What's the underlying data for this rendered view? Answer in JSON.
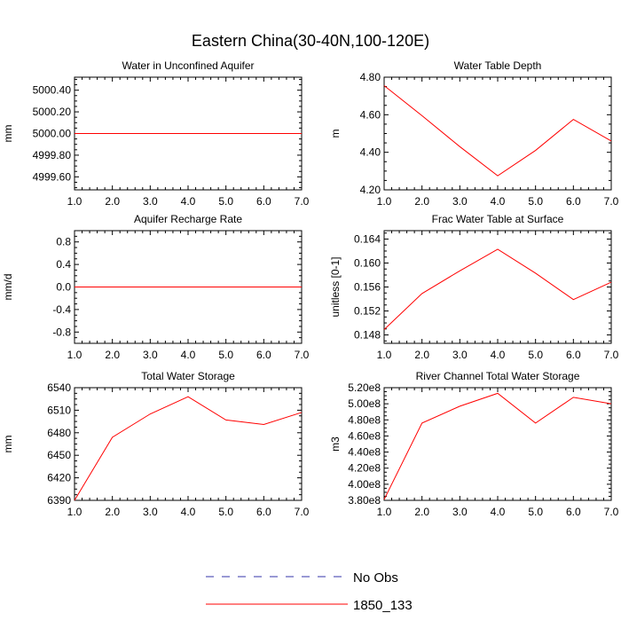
{
  "figure": {
    "title": "Eastern China(30-40N,100-120E)"
  },
  "legend": {
    "entries": [
      {
        "label": "No Obs",
        "color": "#3333aa",
        "style": "dashed"
      },
      {
        "label": "1850_133",
        "color": "#ff0000",
        "style": "solid"
      }
    ]
  },
  "chart_data": [
    {
      "type": "line",
      "title": "Water in Unconfined Aquifer",
      "ylabel": "mm",
      "x": [
        1,
        2,
        3,
        4,
        5,
        6,
        7
      ],
      "xticks": [
        "1.0",
        "2.0",
        "3.0",
        "4.0",
        "5.0",
        "6.0",
        "7.0"
      ],
      "ylim": [
        4999.48,
        5000.52
      ],
      "yticks": [
        4999.6,
        4999.8,
        5000.0,
        5000.2,
        5000.4
      ],
      "ytick_labels": [
        "4999.60",
        "4999.80",
        "5000.00",
        "5000.20",
        "5000.40"
      ],
      "series": [
        {
          "name": "1850_133",
          "color": "#ff0000",
          "values": [
            5000,
            5000,
            5000,
            5000,
            5000,
            5000,
            5000
          ]
        }
      ]
    },
    {
      "type": "line",
      "title": "Water Table Depth",
      "ylabel": "m",
      "x": [
        1,
        2,
        3,
        4,
        5,
        6,
        7
      ],
      "xticks": [
        "1.0",
        "2.0",
        "3.0",
        "4.0",
        "5.0",
        "6.0",
        "7.0"
      ],
      "ylim": [
        4.2,
        4.8
      ],
      "yticks": [
        4.2,
        4.4,
        4.6,
        4.8
      ],
      "ytick_labels": [
        "4.20",
        "4.40",
        "4.60",
        "4.80"
      ],
      "series": [
        {
          "name": "1850_133",
          "color": "#ff0000",
          "values": [
            4.755,
            4.595,
            4.43,
            4.275,
            4.41,
            4.575,
            4.46
          ]
        }
      ]
    },
    {
      "type": "line",
      "title": "Aquifer Recharge Rate",
      "ylabel": "mm/d",
      "x": [
        1,
        2,
        3,
        4,
        5,
        6,
        7
      ],
      "xticks": [
        "1.0",
        "2.0",
        "3.0",
        "4.0",
        "5.0",
        "6.0",
        "7.0"
      ],
      "ylim": [
        -1.0,
        1.0
      ],
      "yticks": [
        -0.8,
        -0.4,
        0.0,
        0.4,
        0.8
      ],
      "ytick_labels": [
        "-0.8",
        "-0.4",
        "0.0",
        "0.4",
        "0.8"
      ],
      "series": [
        {
          "name": "1850_133",
          "color": "#ff0000",
          "values": [
            0,
            0,
            0,
            0,
            0,
            0,
            0
          ]
        }
      ]
    },
    {
      "type": "line",
      "title": "Frac Water Table at Surface",
      "ylabel": "unitless [0-1]",
      "x": [
        1,
        2,
        3,
        4,
        5,
        6,
        7
      ],
      "xticks": [
        "1.0",
        "2.0",
        "3.0",
        "4.0",
        "5.0",
        "6.0",
        "7.0"
      ],
      "ylim": [
        0.1466,
        0.1654
      ],
      "yticks": [
        0.148,
        0.152,
        0.156,
        0.16,
        0.164
      ],
      "ytick_labels": [
        "0.148",
        "0.152",
        "0.156",
        "0.160",
        "0.164"
      ],
      "series": [
        {
          "name": "1850_133",
          "color": "#ff0000",
          "values": [
            0.1489,
            0.1549,
            0.1587,
            0.1623,
            0.1583,
            0.1539,
            0.1568
          ]
        }
      ]
    },
    {
      "type": "line",
      "title": "Total Water Storage",
      "ylabel": "mm",
      "x": [
        1,
        2,
        3,
        4,
        5,
        6,
        7
      ],
      "xticks": [
        "1.0",
        "2.0",
        "3.0",
        "4.0",
        "5.0",
        "6.0",
        "7.0"
      ],
      "ylim": [
        6390,
        6540
      ],
      "yticks": [
        6390,
        6420,
        6450,
        6480,
        6510,
        6540
      ],
      "ytick_labels": [
        "6390",
        "6420",
        "6450",
        "6480",
        "6510",
        "6540"
      ],
      "series": [
        {
          "name": "1850_133",
          "color": "#ff0000",
          "values": [
            6390,
            6474,
            6505,
            6528,
            6497,
            6491,
            6507
          ]
        }
      ]
    },
    {
      "type": "line",
      "title": "River Channel Total Water Storage",
      "ylabel": "m3",
      "x": [
        1,
        2,
        3,
        4,
        5,
        6,
        7
      ],
      "xticks": [
        "1.0",
        "2.0",
        "3.0",
        "4.0",
        "5.0",
        "6.0",
        "7.0"
      ],
      "ylim": [
        380000000,
        520000000
      ],
      "yticks": [
        380000000,
        400000000,
        420000000,
        440000000,
        460000000,
        480000000,
        500000000,
        520000000
      ],
      "ytick_labels": [
        "3.80e8",
        "4.00e8",
        "4.20e8",
        "4.40e8",
        "4.60e8",
        "4.80e8",
        "5.00e8",
        "5.20e8"
      ],
      "series": [
        {
          "name": "1850_133",
          "color": "#ff0000",
          "values": [
            381000000,
            476000000,
            497000000,
            513000000,
            476000000,
            508000000,
            500000000
          ]
        }
      ]
    }
  ]
}
